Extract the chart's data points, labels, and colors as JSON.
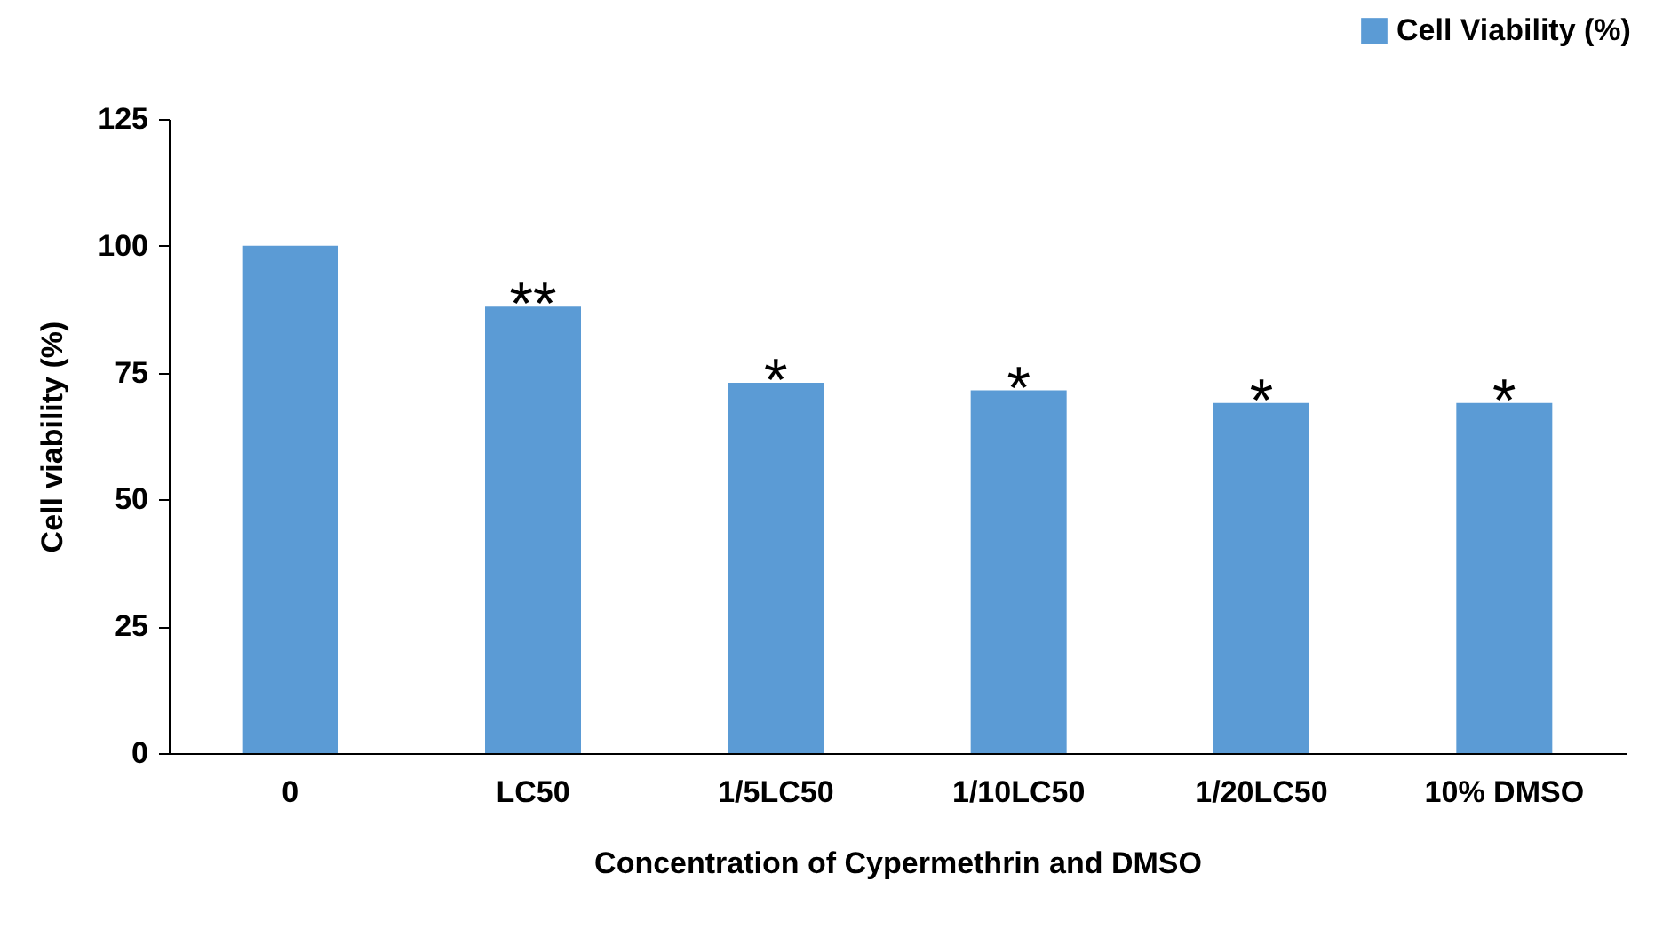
{
  "chart_data": {
    "type": "bar",
    "categories": [
      "0",
      "LC50",
      "1/5LC50",
      "1/10LC50",
      "1/20LC50",
      "10% DMSO"
    ],
    "series": [
      {
        "name": "Cell Viability  (%)",
        "color": "#5b9bd5",
        "values": [
          100,
          88,
          73,
          71.5,
          69,
          69
        ]
      }
    ],
    "xlabel": "Concentration of Cypermethrin and DMSO",
    "ylabel": "Cell viability (%)",
    "ylim": [
      0,
      125
    ],
    "yticks": [
      0,
      25,
      50,
      75,
      100,
      125
    ],
    "grid": false,
    "legend": "top right",
    "annotations": [
      {
        "text": "**",
        "x": "LC50",
        "y": 88
      },
      {
        "text": "*",
        "x": "1/5LC50",
        "y": 73
      },
      {
        "text": "*",
        "x": "1/10LC50",
        "y": 71.5
      },
      {
        "text": "*",
        "x": "1/20LC50",
        "y": 69
      },
      {
        "text": "*",
        "x": "10% DMSO",
        "y": 69
      }
    ]
  }
}
